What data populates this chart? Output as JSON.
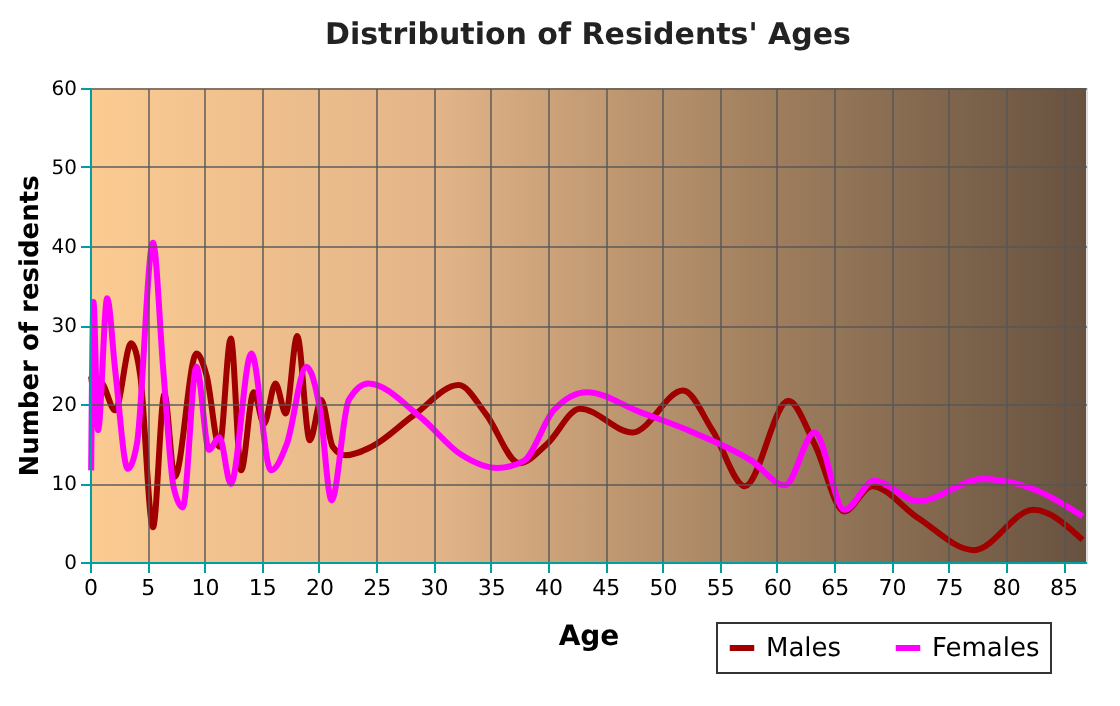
{
  "chart_data": {
    "type": "line",
    "title": "Distribution of Residents' Ages",
    "xlabel": "Age",
    "ylabel": "Number of residents",
    "xlim": [
      0,
      87
    ],
    "xticks": [
      0,
      5,
      10,
      15,
      20,
      25,
      30,
      35,
      40,
      45,
      50,
      55,
      60,
      65,
      70,
      75,
      80,
      85
    ],
    "ylim": [
      0,
      60
    ],
    "yticks": [
      0,
      10,
      20,
      30,
      40,
      50,
      60
    ],
    "grid": true,
    "legend": "bottom right",
    "line_style": "solid",
    "marker": "none",
    "series": [
      {
        "name": "Males",
        "color": "#a00000",
        "x": [
          0.1,
          0.6,
          0.9,
          2.2,
          3.6,
          4.4,
          5.5,
          6.5,
          7.4,
          9.3,
          10.2,
          11.3,
          12.3,
          13.2,
          14.3,
          15.2,
          16.2,
          17.1,
          18.1,
          19.2,
          20.2,
          21.2,
          22.3,
          24.6,
          28.3,
          32.2,
          34.6,
          37.5,
          39.9,
          42.8,
          47.4,
          51.8,
          54.4,
          57.2,
          61.0,
          63.3,
          65.9,
          68.3,
          72.3,
          77.2,
          82.4,
          86.7
        ],
        "values": [
          23.5,
          19.6,
          22.8,
          19.2,
          27.7,
          23.5,
          4.4,
          21.2,
          10.8,
          26.4,
          23.5,
          14.6,
          28.3,
          11.6,
          21.5,
          17.5,
          22.6,
          18.8,
          28.6,
          15.4,
          20.5,
          14.6,
          13.5,
          14.6,
          18.6,
          22.4,
          18.7,
          12.5,
          14.9,
          19.4,
          16.4,
          21.7,
          16.6,
          9.6,
          20.4,
          14.9,
          6.4,
          9.6,
          5.6,
          1.5,
          6.6,
          2.8
        ]
      },
      {
        "name": "Females",
        "color": "#ff00ff",
        "x": [
          0.1,
          0.3,
          0.7,
          1.5,
          2.2,
          3.3,
          4.1,
          5.5,
          6.4,
          7.3,
          8.1,
          9.3,
          10.4,
          11.3,
          12.3,
          14.1,
          15.8,
          17.2,
          18.9,
          20.1,
          21.1,
          22.6,
          24.3,
          28.9,
          32.4,
          35.6,
          37.9,
          40.5,
          43.4,
          48.0,
          52.7,
          57.8,
          60.7,
          63.3,
          65.9,
          68.5,
          72.3,
          78.0,
          82.1,
          86.7
        ],
        "values": [
          11.6,
          32.9,
          16.7,
          33.4,
          24.3,
          11.8,
          15.0,
          40.4,
          24.3,
          9.5,
          6.9,
          24.7,
          14.2,
          15.8,
          9.9,
          26.4,
          11.6,
          15.0,
          24.7,
          19.2,
          7.8,
          20.5,
          22.6,
          18.3,
          13.6,
          11.9,
          12.8,
          19.2,
          21.5,
          19.0,
          16.4,
          12.8,
          9.7,
          16.4,
          6.6,
          10.3,
          7.7,
          10.5,
          9.4,
          5.8
        ]
      }
    ]
  }
}
